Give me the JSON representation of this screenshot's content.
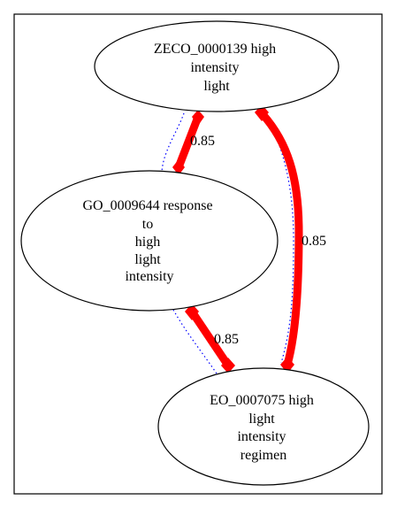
{
  "colors": {
    "frame": "#000000",
    "node_stroke": "#000000",
    "node_fill": "#ffffff",
    "strong_edge": "#ff0000",
    "dotted_edge": "#0000ff",
    "text": "#000000"
  },
  "nodes": [
    {
      "id": "zeco",
      "lines": [
        "ZECO_0000139 high",
        "intensity",
        "light"
      ]
    },
    {
      "id": "go",
      "lines": [
        "GO_0009644 response",
        "to",
        "high",
        "light",
        "intensity"
      ]
    },
    {
      "id": "eo",
      "lines": [
        "EO_0007075 high",
        "light",
        "intensity",
        "regimen"
      ]
    }
  ],
  "edges": [
    {
      "from": "zeco",
      "to": "go",
      "weight": 0.85,
      "label": "0.85"
    },
    {
      "from": "go",
      "to": "eo",
      "weight": 0.85,
      "label": "0.85"
    },
    {
      "from": "zeco",
      "to": "eo",
      "weight": 0.85,
      "label": "0.85"
    }
  ]
}
